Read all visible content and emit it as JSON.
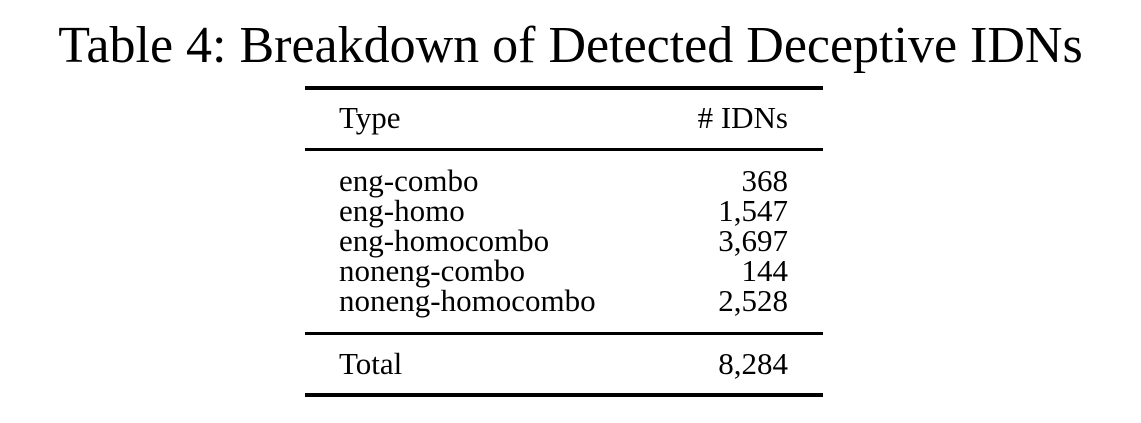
{
  "caption": "Table 4: Breakdown of Detected Deceptive IDNs",
  "table": {
    "columns": [
      "Type",
      "# IDNs"
    ],
    "rows": [
      {
        "type": "eng-combo",
        "count": "368"
      },
      {
        "type": "eng-homo",
        "count": "1,547"
      },
      {
        "type": "eng-homocombo",
        "count": "3,697"
      },
      {
        "type": "noneng-combo",
        "count": "144"
      },
      {
        "type": "noneng-homocombo",
        "count": "2,528"
      }
    ],
    "total": {
      "label": "Total",
      "count": "8,284"
    }
  }
}
